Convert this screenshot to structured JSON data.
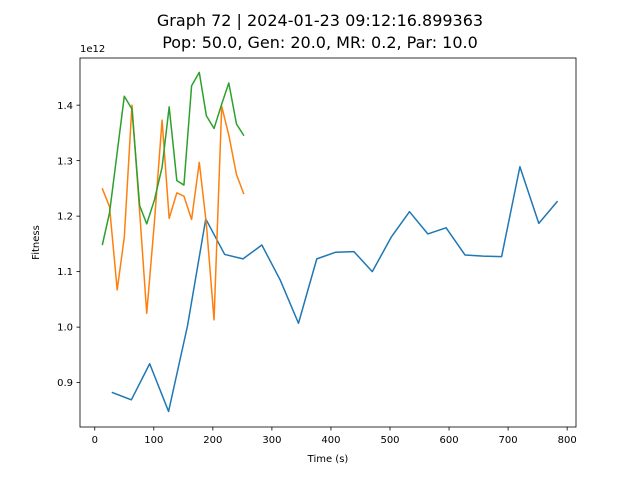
{
  "chart_data": {
    "type": "line",
    "title": "Graph 72 | 2024-01-23 09:12:16.899363",
    "subtitle": "Pop: 50.0, Gen: 20.0, MR: 0.2, Par: 10.0",
    "xlabel": "Time (s)",
    "ylabel": "Fitness",
    "y_offset_label": "1e12",
    "y_scale": 1000000000000,
    "xlim": [
      -25,
      815
    ],
    "ylim": [
      0.82,
      1.485
    ],
    "x_ticks": [
      0,
      100,
      200,
      300,
      400,
      500,
      600,
      700,
      800
    ],
    "y_ticks": [
      0.9,
      1.0,
      1.1,
      1.2,
      1.3,
      1.4
    ],
    "grid": false,
    "legend": "none",
    "series": [
      {
        "color": "#1f77b4",
        "x": [
          30,
          62,
          93,
          125,
          157,
          188,
          220,
          251,
          283,
          314,
          345,
          376,
          408,
          439,
          470,
          502,
          533,
          564,
          595,
          627,
          658,
          689,
          720,
          752,
          783
        ],
        "y": [
          0.882,
          0.869,
          0.934,
          0.848,
          1.002,
          1.195,
          1.131,
          1.123,
          1.148,
          1.085,
          1.007,
          1.123,
          1.135,
          1.136,
          1.1,
          1.162,
          1.208,
          1.168,
          1.179,
          1.13,
          1.128,
          1.127,
          1.289,
          1.187,
          1.226
        ]
      },
      {
        "color": "#ff7f0e",
        "x": [
          13,
          25,
          38,
          50,
          63,
          76,
          88,
          101,
          114,
          126,
          139,
          151,
          164,
          177,
          189,
          202,
          215,
          227,
          240,
          252
        ],
        "y": [
          1.249,
          1.217,
          1.067,
          1.162,
          1.4,
          1.208,
          1.025,
          1.189,
          1.373,
          1.196,
          1.242,
          1.236,
          1.194,
          1.297,
          1.186,
          1.013,
          1.398,
          1.346,
          1.275,
          1.241
        ]
      },
      {
        "color": "#2ca02c",
        "x": [
          13,
          25,
          38,
          50,
          63,
          76,
          88,
          101,
          114,
          126,
          139,
          151,
          164,
          177,
          189,
          202,
          215,
          227,
          240,
          252
        ],
        "y": [
          1.149,
          1.206,
          1.315,
          1.416,
          1.393,
          1.219,
          1.186,
          1.229,
          1.288,
          1.397,
          1.264,
          1.256,
          1.435,
          1.459,
          1.381,
          1.358,
          1.402,
          1.44,
          1.366,
          1.346
        ]
      }
    ]
  }
}
